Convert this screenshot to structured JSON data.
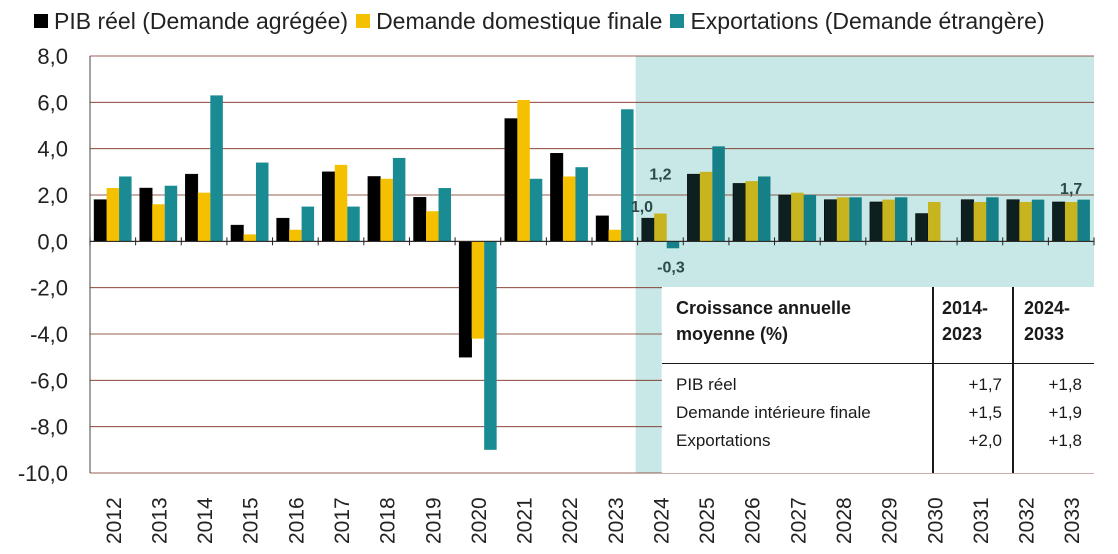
{
  "legend": [
    {
      "label": "PIB réel (Demande agrégée)",
      "color": "#000000"
    },
    {
      "label": "Demande domestique finale",
      "color": "#f5c000"
    },
    {
      "label": "Exportations (Demande étrangère)",
      "color": "#1a8a93"
    }
  ],
  "chart_data": {
    "type": "bar",
    "categories": [
      "2012",
      "2013",
      "2014",
      "2015",
      "2016",
      "2017",
      "2018",
      "2019",
      "2020",
      "2021",
      "2022",
      "2023",
      "2024",
      "2025",
      "2026",
      "2027",
      "2028",
      "2029",
      "2030",
      "2031",
      "2032",
      "2033"
    ],
    "series": [
      {
        "name": "PIB réel (Demande agrégée)",
        "values": [
          1.8,
          2.3,
          2.9,
          0.7,
          1.0,
          3.0,
          2.8,
          1.9,
          -5.0,
          5.3,
          3.8,
          1.1,
          1.0,
          2.9,
          2.5,
          2.0,
          1.8,
          1.7,
          1.2,
          1.8,
          1.8,
          1.7
        ]
      },
      {
        "name": "Demande domestique finale",
        "values": [
          2.3,
          1.6,
          2.1,
          0.3,
          0.5,
          3.3,
          2.7,
          1.3,
          -4.2,
          6.1,
          2.8,
          0.5,
          1.2,
          3.0,
          2.6,
          2.1,
          1.9,
          1.8,
          1.7,
          1.7,
          1.7,
          1.7
        ]
      },
      {
        "name": "Exportations (Demande étrangère)",
        "values": [
          2.8,
          2.4,
          6.3,
          3.4,
          1.5,
          1.5,
          3.6,
          2.3,
          -9.0,
          2.7,
          3.2,
          5.7,
          -0.3,
          4.1,
          2.8,
          2.0,
          1.9,
          1.9,
          null,
          1.9,
          1.8,
          1.8
        ]
      }
    ],
    "projection_colors": [
      "#0d1f1f",
      "#c8b41e",
      "#168088"
    ],
    "projection_start": "2024",
    "projection_shading_color": "#c8e8e8",
    "ylim": [
      -10.0,
      8.0
    ],
    "yticks": [
      "8,0",
      "6,0",
      "4,0",
      "2,0",
      "0,0",
      "-2,0",
      "-4,0",
      "-6,0",
      "-8,0",
      "-10,0"
    ],
    "gridlines": true,
    "annotations": [
      {
        "text": "1,0",
        "category": "2024",
        "series": 0
      },
      {
        "text": "1,2",
        "category": "2024",
        "series": 1
      },
      {
        "text": "-0,3",
        "category": "2024",
        "series": 2
      },
      {
        "text": "1,7",
        "category": "2033",
        "series": 1
      }
    ],
    "xlabel": "",
    "ylabel": ""
  },
  "table": {
    "header": [
      "Croissance annuelle moyenne (%)",
      "2014-2023",
      "2024-2033"
    ],
    "rows": [
      [
        "PIB réel",
        "+1,7",
        "+1,8"
      ],
      [
        "Demande intérieure finale",
        "+1,5",
        "+1,9"
      ],
      [
        "Exportations",
        "+2,0",
        "+1,8"
      ]
    ]
  }
}
